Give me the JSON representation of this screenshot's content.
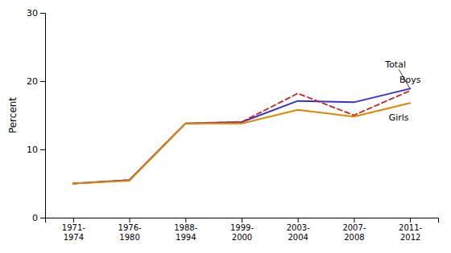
{
  "chart_data": {
    "type": "line",
    "categories": [
      "1971-\n1974",
      "1976-\n1980",
      "1988-\n1994",
      "1999-\n2000",
      "2003-\n2004",
      "2007-\n2008",
      "2011-\n2012"
    ],
    "series": [
      {
        "name": "Total",
        "color": "#3333cc",
        "line_style": "solid",
        "values": [
          5.0,
          5.5,
          13.8,
          14.0,
          17.1,
          16.9,
          18.9
        ]
      },
      {
        "name": "Boys",
        "color": "#cc2222",
        "line_style": "dashed",
        "values": [
          5.0,
          5.5,
          13.8,
          14.0,
          18.2,
          15.0,
          18.6
        ]
      },
      {
        "name": "Girls",
        "color": "#dd8800",
        "line_style": "solid",
        "values": [
          5.0,
          5.4,
          13.8,
          13.8,
          15.8,
          14.8,
          16.8
        ]
      }
    ],
    "y_label": "Percent",
    "ylim": [
      0,
      30
    ],
    "yticks": [
      0,
      10,
      20,
      30
    ],
    "grid": false
  }
}
